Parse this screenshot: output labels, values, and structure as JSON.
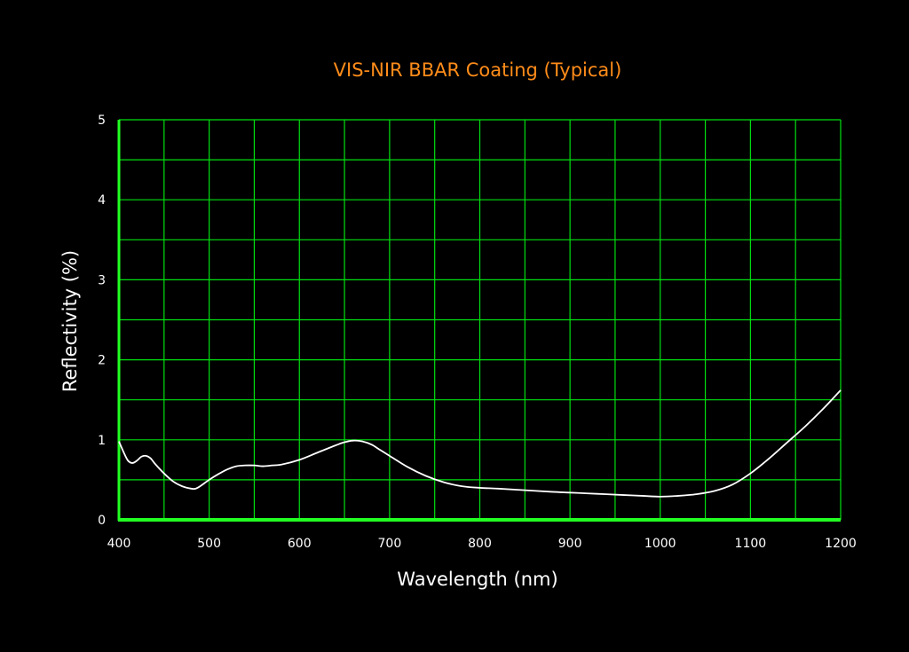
{
  "chart_data": {
    "type": "line",
    "title": "VIS-NIR BBAR Coating (Typical)",
    "xlabel": "Wavelength (nm)",
    "ylabel": "Reflectivity (%)",
    "xlim": [
      400,
      1200
    ],
    "ylim": [
      0,
      5
    ],
    "x_ticks": [
      "400",
      "500",
      "600",
      "700",
      "800",
      "900",
      "1000",
      "1100",
      "1200"
    ],
    "y_ticks": [
      "0",
      "1",
      "2",
      "3",
      "4",
      "5"
    ],
    "x_grid_step": 50,
    "y_grid_step": 0.5,
    "grid": true,
    "legend": "none",
    "series": [
      {
        "x": [
          400,
          405,
          410,
          415,
          420,
          425,
          430,
          435,
          440,
          450,
          460,
          470,
          480,
          485,
          490,
          500,
          510,
          520,
          530,
          540,
          550,
          560,
          570,
          580,
          600,
          620,
          640,
          650,
          660,
          670,
          680,
          690,
          700,
          720,
          740,
          760,
          780,
          800,
          820,
          850,
          880,
          900,
          920,
          940,
          960,
          980,
          1000,
          1020,
          1040,
          1060,
          1080,
          1100,
          1120,
          1140,
          1160,
          1180,
          1200
        ],
        "y": [
          0.98,
          0.85,
          0.74,
          0.71,
          0.74,
          0.79,
          0.8,
          0.77,
          0.7,
          0.58,
          0.48,
          0.42,
          0.39,
          0.39,
          0.42,
          0.5,
          0.57,
          0.63,
          0.67,
          0.68,
          0.68,
          0.67,
          0.68,
          0.69,
          0.75,
          0.84,
          0.93,
          0.97,
          0.99,
          0.98,
          0.94,
          0.87,
          0.8,
          0.66,
          0.55,
          0.47,
          0.42,
          0.4,
          0.39,
          0.37,
          0.35,
          0.34,
          0.33,
          0.32,
          0.31,
          0.3,
          0.29,
          0.3,
          0.32,
          0.36,
          0.44,
          0.58,
          0.76,
          0.96,
          1.16,
          1.38,
          1.62
        ]
      }
    ]
  },
  "colors": {
    "background": "#000000",
    "grid": "#00e010",
    "axis": "#22ff22",
    "curve": "#ffffff",
    "title": "#ff8c1a",
    "labels": "#ffffff"
  }
}
